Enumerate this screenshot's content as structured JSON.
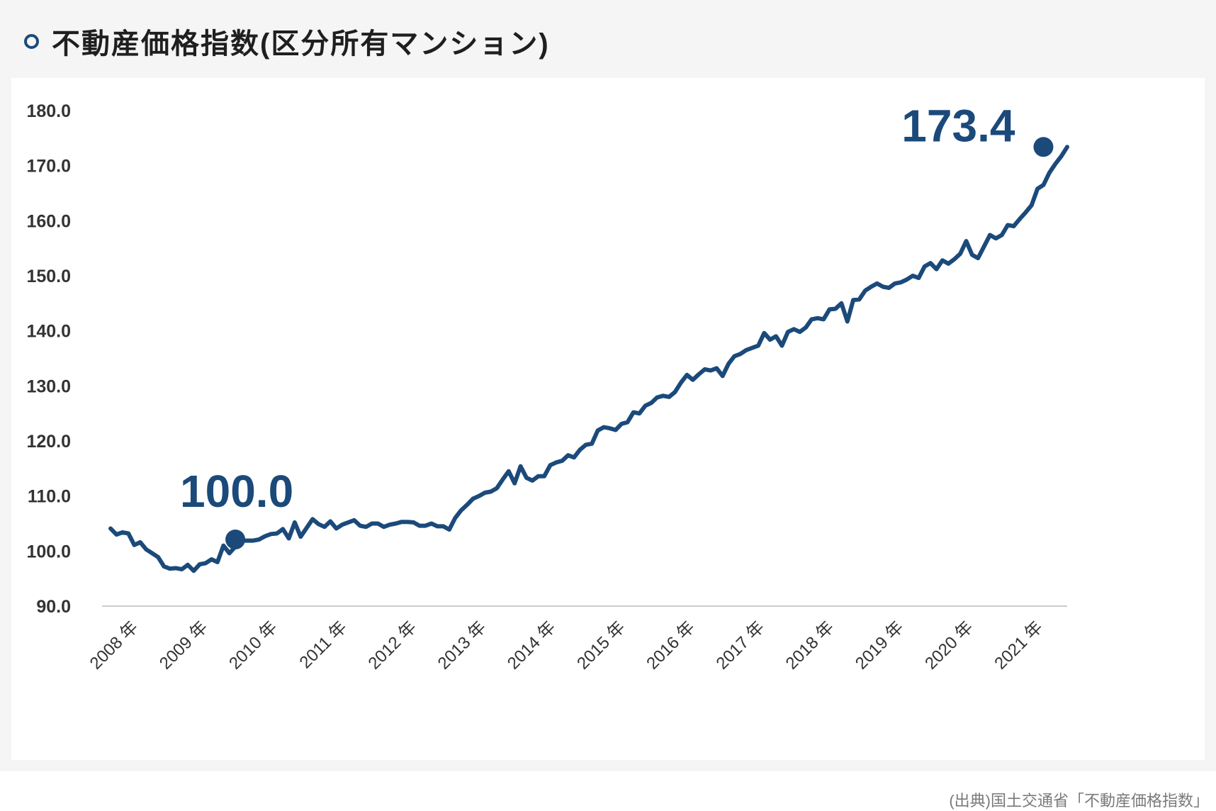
{
  "title": "不動産価格指数(区分所有マンション)",
  "source": "(出典)国土交通省「不動産価格指数」",
  "colors": {
    "line": "#1b4a7a",
    "title_bullet": "#1b4a7a",
    "axis": "#cccccc",
    "panel_bg": "#f5f5f5"
  },
  "chart_data": {
    "type": "line",
    "title": "不動産価格指数(区分所有マンション)",
    "xlabel": "",
    "ylabel": "",
    "ylim": [
      90,
      180
    ],
    "y_ticks": [
      "180.0",
      "170.0",
      "160.0",
      "150.0",
      "140.0",
      "130.0",
      "120.0",
      "110.0",
      "100.0",
      "90.0"
    ],
    "x_tick_labels": [
      "2008 年",
      "2009 年",
      "2010 年",
      "2011 年",
      "2012 年",
      "2013 年",
      "2014 年",
      "2015 年",
      "2016 年",
      "2017 年",
      "2018 年",
      "2019 年",
      "2020 年",
      "2021 年"
    ],
    "grid": false,
    "legend": "none",
    "series": [
      {
        "start": "2008-04",
        "frequency": "monthly",
        "values": [
          104.1,
          103.0,
          103.4,
          103.2,
          101.1,
          101.6,
          100.3,
          99.6,
          98.9,
          97.2,
          96.8,
          96.9,
          96.7,
          97.5,
          96.4,
          97.6,
          97.8,
          98.5,
          98.0,
          101.0,
          99.6,
          100.8,
          101.9,
          101.9,
          101.9,
          102.1,
          102.7,
          103.1,
          103.2,
          104.0,
          102.3,
          105.2,
          102.6,
          104.2,
          105.8,
          104.9,
          104.4,
          105.4,
          104.1,
          104.8,
          105.2,
          105.6,
          104.6,
          104.4,
          105.0,
          105.0,
          104.4,
          104.8,
          105.0,
          105.3,
          105.3,
          105.2,
          104.6,
          104.6,
          105.0,
          104.5,
          104.5,
          103.9,
          106.0,
          107.4,
          108.4,
          109.5,
          110.0,
          110.6,
          110.8,
          111.4,
          113.0,
          114.5,
          112.3,
          115.4,
          113.3,
          112.8,
          113.6,
          113.6,
          115.6,
          116.1,
          116.4,
          117.4,
          117.0,
          118.4,
          119.3,
          119.5,
          121.9,
          122.5,
          122.3,
          122.0,
          123.1,
          123.4,
          125.2,
          125.0,
          126.4,
          126.9,
          127.9,
          128.2,
          128.0,
          128.9,
          130.6,
          132.0,
          131.1,
          132.1,
          133.0,
          132.8,
          133.2,
          131.8,
          134.0,
          135.4,
          135.8,
          136.5,
          136.9,
          137.3,
          139.6,
          138.4,
          139.0,
          137.3,
          139.8,
          140.3,
          139.8,
          140.6,
          142.1,
          142.3,
          142.1,
          143.9,
          144.0,
          145.0,
          141.7,
          145.6,
          145.7,
          147.3,
          148.0,
          148.6,
          148.0,
          147.8,
          148.6,
          148.8,
          149.3,
          150.0,
          149.6,
          151.7,
          152.3,
          151.2,
          152.8,
          152.2,
          153.0,
          154.0,
          156.3,
          153.8,
          153.2,
          155.3,
          157.4,
          156.8,
          157.4,
          159.2,
          159.0,
          160.3,
          161.5,
          162.8,
          165.8,
          166.5,
          168.7,
          170.3,
          171.7,
          173.4
        ]
      }
    ],
    "annotations": [
      {
        "text": "100.0",
        "x": "2010-01",
        "y": 102.1
      },
      {
        "text": "173.4",
        "x": "2021-05",
        "y": 173.4
      }
    ]
  }
}
